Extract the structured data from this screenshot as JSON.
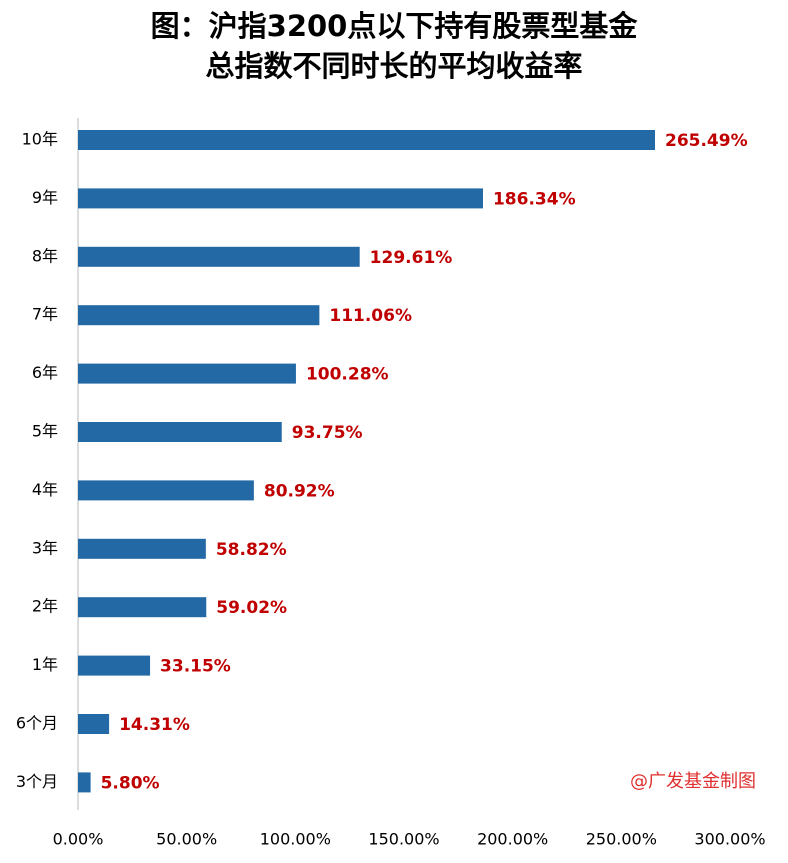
{
  "chart_data": {
    "type": "hbar",
    "title": [
      "图：沪指3200点以下持有股票型基金",
      "总指数不同时长的平均收益率"
    ],
    "categories": [
      "10年",
      "9年",
      "8年",
      "7年",
      "6年",
      "5年",
      "4年",
      "3年",
      "2年",
      "1年",
      "6个月",
      "3个月"
    ],
    "values": [
      265.49,
      186.34,
      129.61,
      111.06,
      100.28,
      93.75,
      80.92,
      58.82,
      59.02,
      33.15,
      14.31,
      5.8
    ],
    "value_labels": [
      "265.49%",
      "186.34%",
      "129.61%",
      "111.06%",
      "100.28%",
      "93.75%",
      "80.92%",
      "58.82%",
      "59.02%",
      "33.15%",
      "14.31%",
      "5.80%"
    ],
    "color": "#2369a5",
    "label_color": "#c00000",
    "xlim": [
      0,
      300
    ],
    "xticks": [
      {
        "value": 0,
        "label": "0.00%"
      },
      {
        "value": 50,
        "label": "50.00%"
      },
      {
        "value": 100,
        "label": "100.00%"
      },
      {
        "value": 150,
        "label": "150.00%"
      },
      {
        "value": 200,
        "label": "200.00%"
      },
      {
        "value": 250,
        "label": "250.00%"
      },
      {
        "value": 300,
        "label": "300.00%"
      }
    ],
    "annotation": "@广发基金制图",
    "annotation_color": "#e03030"
  }
}
